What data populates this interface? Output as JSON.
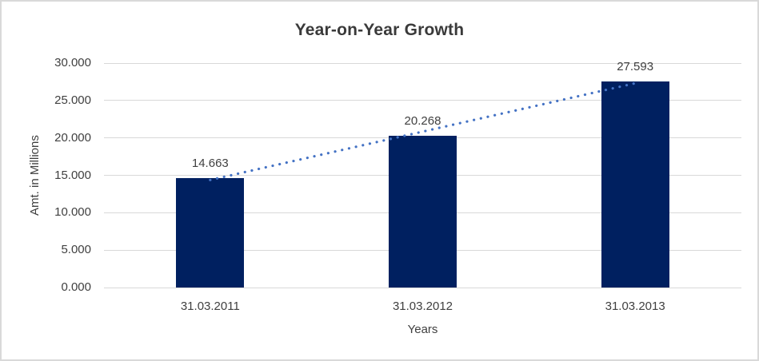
{
  "chart_data": {
    "type": "bar",
    "title": "Year-on-Year Growth",
    "xlabel": "Years",
    "ylabel": "Amt. in Millions",
    "categories": [
      "31.03.2011",
      "31.03.2012",
      "31.03.2013"
    ],
    "values": [
      14.663,
      20.268,
      27.593
    ],
    "data_labels": [
      "14.663",
      "20.268",
      "27.593"
    ],
    "ylim": [
      0,
      30
    ],
    "yticks": [
      {
        "value": 0,
        "label": "0.000"
      },
      {
        "value": 5,
        "label": "5.000"
      },
      {
        "value": 10,
        "label": "10.000"
      },
      {
        "value": 15,
        "label": "15.000"
      },
      {
        "value": 20,
        "label": "20.000"
      },
      {
        "value": 25,
        "label": "25.000"
      },
      {
        "value": 30,
        "label": "30.000"
      }
    ],
    "grid": true,
    "legend": "none",
    "trendline": {
      "type": "linear",
      "style": "dotted"
    },
    "colors": {
      "bar": "#002060",
      "trendline": "#4472c4",
      "gridline": "#d9d9d9",
      "title_text": "#3a3a3a",
      "label_text": "#404040",
      "chart_border": "#d9d9d9",
      "background": "#ffffff"
    }
  }
}
